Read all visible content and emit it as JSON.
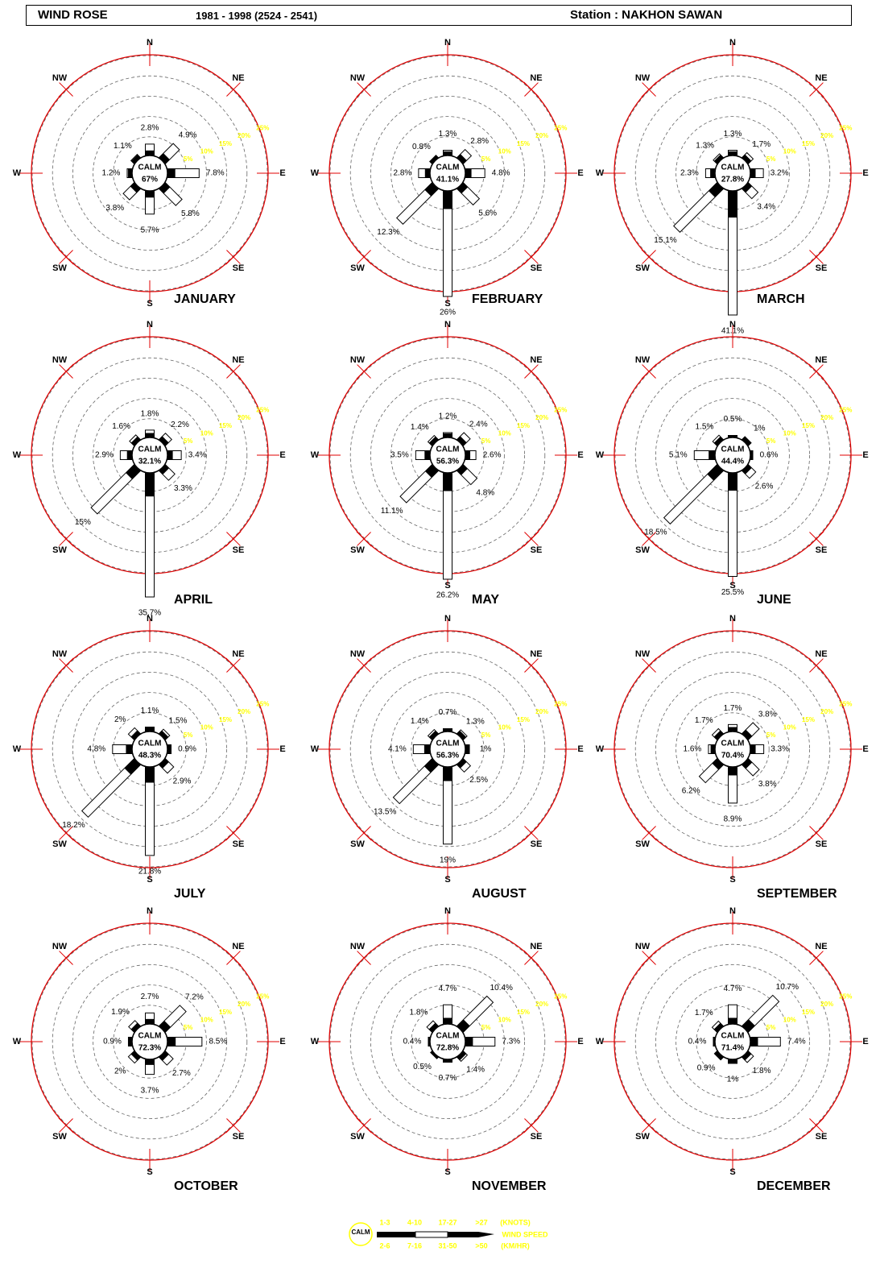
{
  "header": {
    "title": "WIND ROSE",
    "period": "1981 - 1998 (2524 - 2541)",
    "station": "Station : NAKHON SAWAN"
  },
  "chart_data": {
    "type": "windrose",
    "directions": [
      "N",
      "NE",
      "E",
      "SE",
      "S",
      "SW",
      "W",
      "NW"
    ],
    "ring_labels": [
      "5%",
      "10%",
      "15%",
      "20%",
      "25%"
    ],
    "colors": {
      "ring": "#e00000",
      "accent": "#ffff00",
      "bar": "#000000"
    },
    "months": [
      {
        "name": "JANUARY",
        "calm_label": "67%",
        "labels": [
          "2.8%",
          "4.9%",
          "7.8%",
          "5.8%",
          "5.7%",
          "3.8%",
          "1.2%",
          "1.1%"
        ],
        "values": [
          2.8,
          4.9,
          7.8,
          5.8,
          5.7,
          3.8,
          1.2,
          1.1
        ]
      },
      {
        "name": "FEBRUARY",
        "calm_label": "41.1%",
        "labels": [
          "1.3%",
          "2.8%",
          "4.8%",
          "5.6%",
          "26%",
          "12.3%",
          "2.8%",
          "0.8%"
        ],
        "values": [
          1.3,
          2.8,
          4.8,
          5.6,
          26,
          12.3,
          2.8,
          0.8
        ]
      },
      {
        "name": "MARCH",
        "calm_label": "27.8%",
        "labels": [
          "1.3%",
          "1.7%",
          "3.2%",
          "3.4%",
          "41.1%",
          "15.1%",
          "2.3%",
          "1.3%"
        ],
        "values": [
          1.3,
          1.7,
          3.2,
          3.4,
          41.1,
          15.1,
          2.3,
          1.3
        ]
      },
      {
        "name": "APRIL",
        "calm_label": "32.1%",
        "labels": [
          "1.8%",
          "2.2%",
          "3.4%",
          "3.3%",
          "35.7%",
          "15%",
          "2.9%",
          "1.6%"
        ],
        "values": [
          1.8,
          2.2,
          3.4,
          3.3,
          35.7,
          15,
          2.9,
          1.6
        ]
      },
      {
        "name": "MAY",
        "calm_label": "56.3%",
        "labels": [
          "1.2%",
          "2.4%",
          "2.6%",
          "4.8%",
          "26.2%",
          "11.1%",
          "3.5%",
          "1.4%"
        ],
        "values": [
          1.2,
          2.4,
          2.6,
          4.8,
          26.2,
          11.1,
          3.5,
          1.4
        ]
      },
      {
        "name": "JUNE",
        "calm_label": "44.4%",
        "labels": [
          "0.5%",
          "1%",
          "0.6%",
          "2.6%",
          "25.5%",
          "18.5%",
          "5.1%",
          "1.5%"
        ],
        "values": [
          0.5,
          1,
          0.6,
          2.6,
          25.5,
          18.5,
          5.1,
          1.5
        ]
      },
      {
        "name": "JULY",
        "calm_label": "48.3%",
        "labels": [
          "1.1%",
          "1.5%",
          "0.9%",
          "2.9%",
          "21.8%",
          "18.2%",
          "4.8%",
          "2%"
        ],
        "values": [
          1.1,
          1.5,
          0.9,
          2.9,
          21.8,
          18.2,
          4.8,
          2
        ]
      },
      {
        "name": "AUGUST",
        "calm_label": "56.3%",
        "labels": [
          "0.7%",
          "1.3%",
          "1%",
          "2.5%",
          "19%",
          "13.5%",
          "4.1%",
          "1.4%"
        ],
        "values": [
          0.7,
          1.3,
          1,
          2.5,
          19,
          13.5,
          4.1,
          1.4
        ]
      },
      {
        "name": "SEPTEMBER",
        "calm_label": "70.4%",
        "labels": [
          "1.7%",
          "3.8%",
          "3.3%",
          "3.8%",
          "8.9%",
          "6.2%",
          "1.6%",
          "1.7%"
        ],
        "values": [
          1.7,
          3.8,
          3.3,
          3.8,
          8.9,
          6.2,
          1.6,
          1.7
        ]
      },
      {
        "name": "OCTOBER",
        "calm_label": "72.3%",
        "labels": [
          "2.7%",
          "7.2%",
          "8.5%",
          "2.7%",
          "3.7%",
          "2%",
          "0.9%",
          "1.9%"
        ],
        "values": [
          2.7,
          7.2,
          8.5,
          2.7,
          3.7,
          2,
          0.9,
          1.9
        ]
      },
      {
        "name": "NOVEMBER",
        "calm_label": "72.8%",
        "labels": [
          "4.7%",
          "10.4%",
          "7.3%",
          "1.4%",
          "0.7%",
          "0.5%",
          "0.4%",
          "1.8%"
        ],
        "values": [
          4.7,
          10.4,
          7.3,
          1.4,
          0.7,
          0.5,
          0.4,
          1.8
        ]
      },
      {
        "name": "DECEMBER",
        "calm_label": "71.4%",
        "labels": [
          "4.7%",
          "10.7%",
          "7.4%",
          "1.8%",
          "1%",
          "0.9%",
          "0.4%",
          "1.7%"
        ],
        "values": [
          4.7,
          10.7,
          7.4,
          1.8,
          1,
          0.9,
          0.4,
          1.7
        ]
      }
    ]
  },
  "legend": {
    "calm": "CALM",
    "top_ranges": [
      "1-3",
      "4-10",
      "17-27",
      ">27"
    ],
    "top_unit": "(KNOTS)",
    "bottom_ranges": [
      "2-6",
      "7-16",
      "31-50",
      ">50"
    ],
    "bottom_unit": "(KM/HR)",
    "speed_label": "WIND SPEED"
  }
}
